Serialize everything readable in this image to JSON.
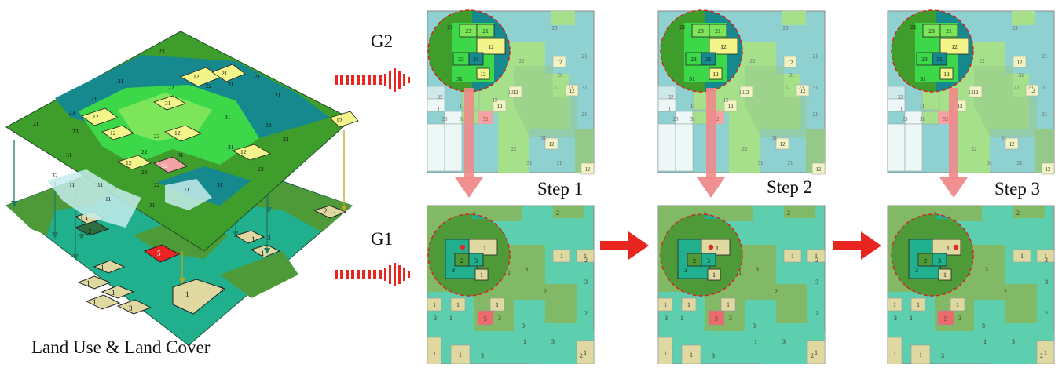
{
  "caption": "Land Use & Land Cover",
  "g2_label": "G2",
  "g1_label": "G1",
  "steps": [
    "Step 1",
    "Step 2",
    "Step 3"
  ],
  "g2_map": {
    "land_cells": [
      {
        "c": "23",
        "fill": "#a6e08b"
      },
      {
        "c": "22",
        "fill": "#b6dc9a"
      },
      {
        "c": "21",
        "fill": "#95c98a"
      },
      {
        "c": "31",
        "fill": "#8fd0d0"
      },
      {
        "c": "12",
        "fill": "#f1f3c3"
      },
      {
        "c": "32",
        "fill": "#cfe8ea"
      },
      {
        "c": "11",
        "fill": "#edf7f6"
      },
      {
        "c": "52",
        "fill": "#f0a2a4"
      }
    ]
  },
  "g1_map": {
    "land_cells": [
      {
        "c": "3",
        "fill": "#5ecfae"
      },
      {
        "c": "2",
        "fill": "#82b967"
      },
      {
        "c": "1",
        "fill": "#dfd9a1"
      },
      {
        "c": "5",
        "fill": "#ec6a6c"
      }
    ]
  },
  "colors": {
    "g2_dark_green": "#3f9e2b",
    "g2_bright_green": "#3cd84a",
    "g2_lime": "#7ce55a",
    "g2_teal": "#15898e",
    "g2_yellow": "#f3f58a",
    "g1_green": "#4f9a38",
    "g1_teal": "#21b08e",
    "arrow_red": "#e8251f",
    "arrow_pink": "#f08a8a",
    "lens_ring": "#d91e1e"
  }
}
